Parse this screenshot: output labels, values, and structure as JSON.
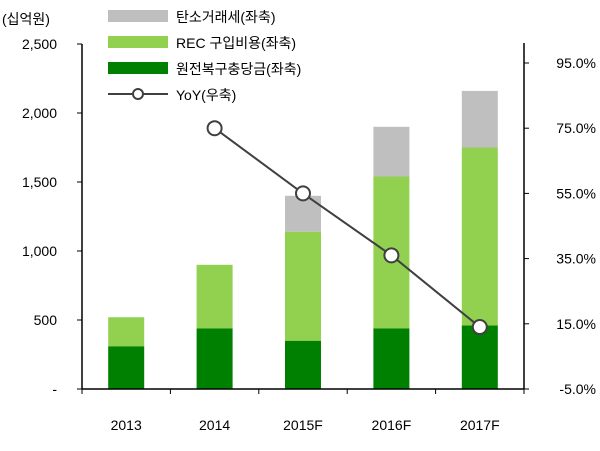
{
  "chart_data": {
    "type": "bar",
    "stacked": true,
    "left_axis_unit": "(십억원)",
    "categories": [
      "2013",
      "2014",
      "2015F",
      "2016F",
      "2017F"
    ],
    "left_ylim": [
      0,
      2500
    ],
    "left_ticks": [
      "-",
      "500",
      "1,000",
      "1,500",
      "2,000",
      "2,500"
    ],
    "left_tick_values": [
      0,
      500,
      1000,
      1500,
      2000,
      2500
    ],
    "right_ylim": [
      -5,
      95
    ],
    "right_ticks": [
      "-5.0%",
      "15.0%",
      "35.0%",
      "55.0%",
      "75.0%",
      "95.0%"
    ],
    "right_tick_values": [
      -5,
      15,
      35,
      55,
      75,
      95
    ],
    "grid": false,
    "legend_position": "top-left",
    "series": [
      {
        "name": "원전복구충당금(좌축)",
        "axis": "left",
        "kind": "bar",
        "color": "#008000",
        "values": [
          310,
          440,
          350,
          440,
          460
        ]
      },
      {
        "name": "REC 구입비용(좌축)",
        "axis": "left",
        "kind": "bar",
        "color": "#92d050",
        "values": [
          210,
          460,
          790,
          1100,
          1290
        ]
      },
      {
        "name": "탄소거래세(좌축)",
        "axis": "left",
        "kind": "bar",
        "color": "#bfbfbf",
        "values": [
          0,
          0,
          260,
          360,
          410
        ]
      },
      {
        "name": "YoY(우축)",
        "axis": "right",
        "kind": "line",
        "color": "#404040",
        "values": [
          null,
          75,
          55,
          36,
          14
        ]
      }
    ],
    "legend_order": [
      2,
      1,
      0,
      3
    ]
  }
}
